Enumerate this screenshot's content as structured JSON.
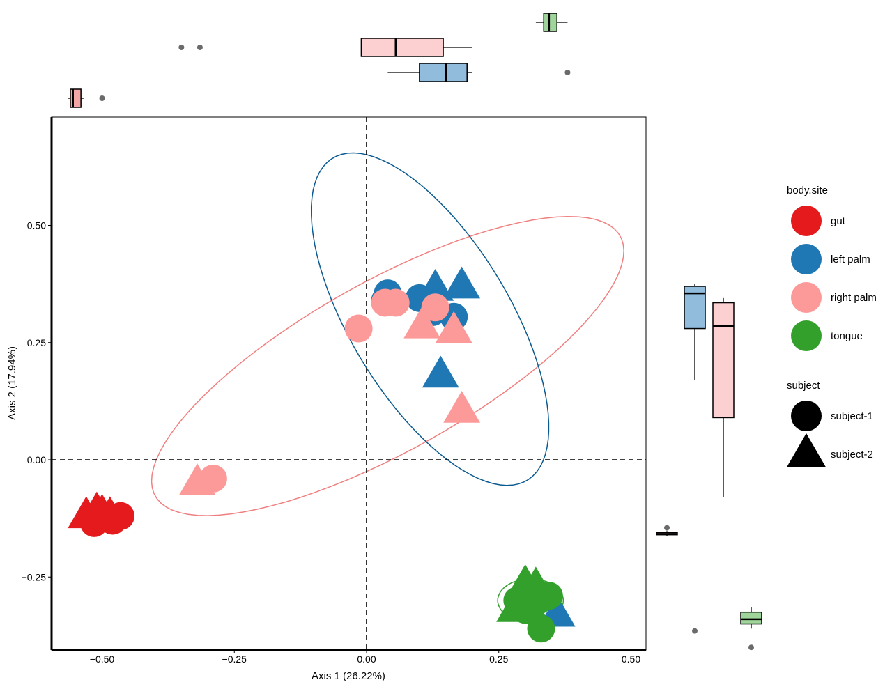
{
  "chart_data": {
    "type": "scatter",
    "xlabel": "Axis 1 (26.22%)",
    "ylabel": "Axis 2 (17.94%)",
    "xlim": [
      -0.6,
      0.53
    ],
    "ylim": [
      -0.405,
      0.73
    ],
    "x_ticks": [
      {
        "value": -0.5,
        "label": "−0.50"
      },
      {
        "value": -0.25,
        "label": "−0.25"
      },
      {
        "value": 0.0,
        "label": "0.00"
      },
      {
        "value": 0.25,
        "label": "0.25"
      },
      {
        "value": 0.5,
        "label": "0.50"
      }
    ],
    "y_ticks": [
      {
        "value": 0.5,
        "label": "0.50"
      },
      {
        "value": 0.25,
        "label": "0.25"
      },
      {
        "value": 0.0,
        "label": "0.00"
      },
      {
        "value": -0.25,
        "label": "−0.25"
      }
    ],
    "reference_lines": {
      "x": 0,
      "y": 0,
      "style": "dashed"
    },
    "legend": {
      "placement": "right",
      "color_title": "body.site",
      "color_entries": [
        {
          "name": "gut",
          "color": "#E41A1C"
        },
        {
          "name": "left palm",
          "color": "#1F78B4"
        },
        {
          "name": "right palm",
          "color": "#FB9A99"
        },
        {
          "name": "tongue",
          "color": "#33A02C"
        }
      ],
      "shape_title": "subject",
      "shape_entries": [
        {
          "name": "subject-1",
          "shape": "circle"
        },
        {
          "name": "subject-2",
          "shape": "triangle"
        }
      ]
    },
    "series": [
      {
        "name": "gut",
        "color": "#E41A1C",
        "points": [
          {
            "x": -0.515,
            "y": -0.135,
            "shape": "circle"
          },
          {
            "x": -0.5,
            "y": -0.125,
            "shape": "circle"
          },
          {
            "x": -0.48,
            "y": -0.13,
            "shape": "circle"
          },
          {
            "x": -0.465,
            "y": -0.12,
            "shape": "circle"
          },
          {
            "x": -0.53,
            "y": -0.12,
            "shape": "triangle"
          },
          {
            "x": -0.51,
            "y": -0.11,
            "shape": "triangle"
          },
          {
            "x": -0.5,
            "y": -0.115,
            "shape": "triangle"
          },
          {
            "x": -0.485,
            "y": -0.12,
            "shape": "triangle"
          }
        ]
      },
      {
        "name": "left palm",
        "color": "#1F78B4",
        "points": [
          {
            "x": 0.04,
            "y": 0.355,
            "shape": "circle"
          },
          {
            "x": 0.035,
            "y": 0.34,
            "shape": "circle"
          },
          {
            "x": 0.1,
            "y": 0.345,
            "shape": "circle"
          },
          {
            "x": 0.125,
            "y": 0.315,
            "shape": "circle"
          },
          {
            "x": 0.165,
            "y": 0.305,
            "shape": "circle"
          },
          {
            "x": 0.13,
            "y": 0.365,
            "shape": "triangle"
          },
          {
            "x": 0.18,
            "y": 0.37,
            "shape": "triangle"
          },
          {
            "x": 0.14,
            "y": 0.18,
            "shape": "triangle"
          },
          {
            "x": 0.36,
            "y": -0.33,
            "shape": "triangle"
          }
        ]
      },
      {
        "name": "right palm",
        "color": "#FB9A99",
        "points": [
          {
            "x": 0.035,
            "y": 0.335,
            "shape": "circle"
          },
          {
            "x": 0.055,
            "y": 0.335,
            "shape": "circle"
          },
          {
            "x": 0.13,
            "y": 0.325,
            "shape": "circle"
          },
          {
            "x": -0.015,
            "y": 0.28,
            "shape": "circle"
          },
          {
            "x": -0.29,
            "y": -0.04,
            "shape": "circle"
          },
          {
            "x": 0.105,
            "y": 0.285,
            "shape": "triangle"
          },
          {
            "x": 0.165,
            "y": 0.275,
            "shape": "triangle"
          },
          {
            "x": 0.18,
            "y": 0.105,
            "shape": "triangle"
          },
          {
            "x": -0.32,
            "y": -0.05,
            "shape": "triangle"
          }
        ]
      },
      {
        "name": "tongue",
        "color": "#33A02C",
        "points": [
          {
            "x": 0.285,
            "y": -0.3,
            "shape": "circle"
          },
          {
            "x": 0.305,
            "y": -0.29,
            "shape": "circle"
          },
          {
            "x": 0.325,
            "y": -0.3,
            "shape": "circle"
          },
          {
            "x": 0.345,
            "y": -0.29,
            "shape": "circle"
          },
          {
            "x": 0.3,
            "y": -0.32,
            "shape": "circle"
          },
          {
            "x": 0.33,
            "y": -0.36,
            "shape": "circle"
          },
          {
            "x": 0.3,
            "y": -0.265,
            "shape": "triangle"
          },
          {
            "x": 0.28,
            "y": -0.32,
            "shape": "triangle"
          },
          {
            "x": 0.32,
            "y": -0.27,
            "shape": "triangle"
          },
          {
            "x": 0.305,
            "y": -0.31,
            "shape": "triangle"
          }
        ]
      }
    ],
    "ellipses": [
      {
        "group": "right palm",
        "color": "#F08080",
        "cx": 0.04,
        "cy": 0.2,
        "rx": 0.52,
        "ry": 0.175,
        "angle_deg": 33
      },
      {
        "group": "left palm",
        "color": "#0B5A8F",
        "cx": 0.12,
        "cy": 0.3,
        "rx": 0.39,
        "ry": 0.155,
        "angle_deg": -63
      },
      {
        "group": "tongue",
        "color": "#33A02C",
        "cx": 0.31,
        "cy": -0.3,
        "rx": 0.062,
        "ry": 0.046,
        "angle_deg": 0
      }
    ],
    "marginal_boxplots": {
      "x_axis": [
        {
          "group": "gut",
          "color": "#F4A6A6",
          "q1": -0.56,
          "median": -0.555,
          "q3": -0.54,
          "min": -0.565,
          "max": -0.535,
          "outliers": [
            -0.5
          ]
        },
        {
          "group": "right palm",
          "color": "#FCD0D0",
          "q1": -0.01,
          "median": 0.055,
          "q3": 0.145,
          "min": -0.01,
          "max": 0.2,
          "outliers": [
            -0.35,
            -0.315
          ]
        },
        {
          "group": "left palm",
          "color": "#92BCDC",
          "q1": 0.1,
          "median": 0.15,
          "q3": 0.19,
          "min": 0.04,
          "max": 0.2,
          "outliers": [
            0.38
          ]
        },
        {
          "group": "tongue",
          "color": "#9FD59A",
          "q1": 0.335,
          "median": 0.345,
          "q3": 0.36,
          "min": 0.32,
          "max": 0.38,
          "outliers": []
        }
      ],
      "y_axis": [
        {
          "group": "left palm",
          "color": "#92BCDC",
          "q1": 0.28,
          "median": 0.355,
          "q3": 0.37,
          "min": 0.17,
          "max": 0.375,
          "outliers": []
        },
        {
          "group": "right palm",
          "color": "#FCD0D0",
          "q1": 0.09,
          "median": 0.285,
          "q3": 0.335,
          "min": -0.08,
          "max": 0.345,
          "outliers": []
        },
        {
          "group": "gut",
          "color": "#F4A6A6",
          "q1": -0.16,
          "median": -0.158,
          "q3": -0.155,
          "min": -0.162,
          "max": -0.152,
          "outliers": [
            -0.145
          ]
        },
        {
          "group": "tongue",
          "color": "#9FD59A",
          "q1": -0.35,
          "median": -0.34,
          "q3": -0.325,
          "min": -0.36,
          "max": -0.315,
          "outliers": [
            -0.365,
            -0.4
          ]
        }
      ]
    }
  }
}
